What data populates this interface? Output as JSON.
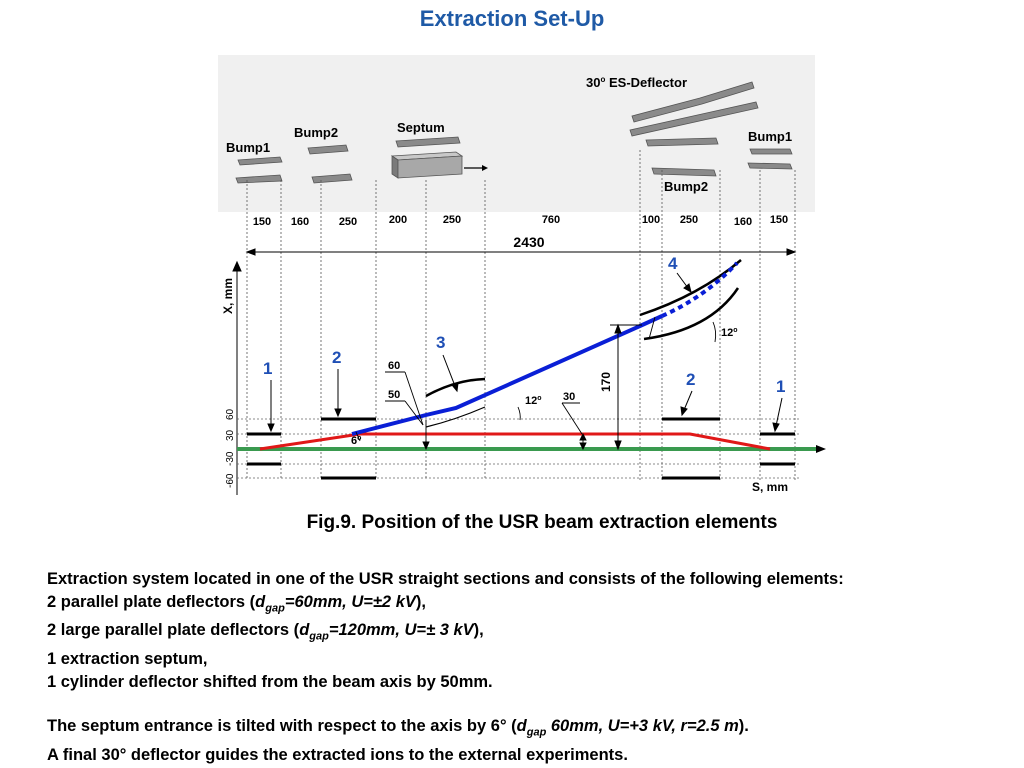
{
  "title": "Extraction Set-Up",
  "diagram": {
    "top_labels": {
      "bump1_left": "Bump1",
      "bump2_left": "Bump2",
      "septum": "Septum",
      "es_deflector": "ES-Deflector",
      "es_deflector_angle": "30",
      "es_deflector_deg": "o",
      "bump1_right": "Bump1",
      "bump2_right": "Bump2"
    },
    "segments": [
      "150",
      "160",
      "250",
      "200",
      "250",
      "760",
      "100",
      "250",
      "160",
      "150"
    ],
    "total_length": "2430",
    "axes": {
      "x_label": "X, mm",
      "s_label": "S, mm",
      "x_ticks": [
        "60",
        "30",
        "30",
        "-30",
        "-60"
      ]
    },
    "element_numbers": [
      "1",
      "2",
      "3",
      "4",
      "2",
      "1"
    ],
    "annotations": {
      "d60": "60",
      "d50": "50",
      "d30": "30",
      "d170": "170",
      "angle_12_a": "12",
      "angle_12_b": "12",
      "angle_6": "6",
      "deg": "o"
    },
    "colors": {
      "title": "#1f5aa6",
      "extracted_beam": "#0a1fd6",
      "bumped_orbit": "#e01818",
      "reference_axis": "#3a9a4f",
      "numbers": "#1f4fb5"
    }
  },
  "caption": "Fig.9. Position of the USR beam extraction elements",
  "body": {
    "intro": "Extraction system located in one of the USR straight sections and consists of the following elements:",
    "line1_pre": "2 parallel plate deflectors (",
    "line1_d": "d",
    "line1_sub": "gap",
    "line1_params": "=60mm, U=±2 kV",
    "line1_post": "),",
    "line2_pre": "2 large parallel plate deflectors (",
    "line2_d": "d",
    "line2_sub": "gap",
    "line2_params": "=120mm, U=± 3 kV",
    "line2_post": "),",
    "line3": "1 extraction septum,",
    "line4": "1 cylinder deflector shifted from the beam axis by 50mm.",
    "line5_pre": "The septum entrance is tilted with respect to the axis by 6° (",
    "line5_d": "d",
    "line5_sub": "gap",
    "line5_params": " 60mm, U=+3 kV, r=2.5 m",
    "line5_post": ").",
    "line6": "A final 30° deflector guides the extracted ions to the external experiments."
  }
}
